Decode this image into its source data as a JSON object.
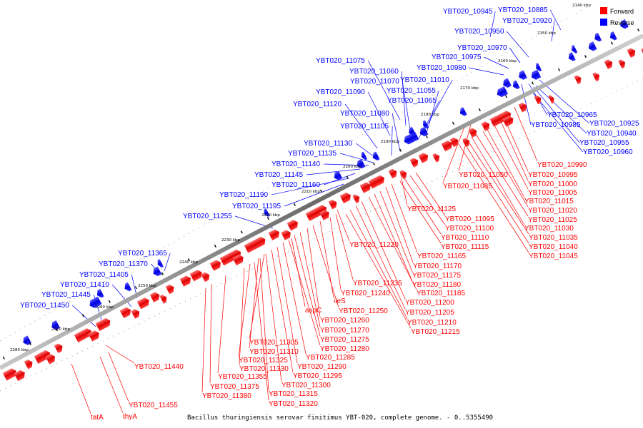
{
  "legend": {
    "forward": {
      "label": "Forward",
      "color": "#ff0000"
    },
    "reverse": {
      "label": "Reverse",
      "color": "#0000ff"
    }
  },
  "caption": "Bacillus thuringiensis serovar finitimus YBT-020, complete genome. - 0..5355490",
  "ticks": [
    "2140 kbp",
    "2150 kbp",
    "2160 kbp",
    "2170 kbp",
    "2180 kbp",
    "2190 kbp",
    "2200 kbp",
    "2210 kbp",
    "2220 kbp",
    "2230 kbp",
    "2240 kbp",
    "2250 kbp",
    "2260 kbp",
    "2270 kbp",
    "2280 kbp"
  ],
  "reverse_labels": [
    "YBT020_10945",
    "YBT020_10885",
    "YBT020_10920",
    "YBT020_10950",
    "YBT020_10970",
    "YBT020_10975",
    "YBT020_10980",
    "YBT020_11075",
    "YBT020_11060",
    "YBT020_11070",
    "YBT020_11010",
    "YBT020_11090",
    "YBT020_11055",
    "YBT020_11065",
    "YBT020_11120",
    "YBT020_11080",
    "YBT020_11105",
    "YBT020_11130",
    "YBT020_11135",
    "YBT020_11140",
    "YBT020_11145",
    "YBT020_11160",
    "YBT020_11190",
    "YBT020_11195",
    "YBT020_11255",
    "YBT020_11365",
    "YBT020_11370",
    "YBT020_11405",
    "YBT020_11410",
    "YBT020_11445",
    "YBT020_11450",
    "YBT020_10965",
    "YBT020_10925",
    "YBT020_10985",
    "YBT020_10940",
    "YBT020_10955",
    "YBT020_10960"
  ],
  "forward_labels": [
    "YBT020_10990",
    "YBT020_10995",
    "YBT020_11050",
    "YBT020_11000",
    "YBT020_11085",
    "YBT020_11005",
    "YBT020_11015",
    "YBT020_11020",
    "YBT020_11125",
    "YBT020_11025",
    "YBT020_11095",
    "YBT020_11030",
    "YBT020_11100",
    "YBT020_11035",
    "YBT020_11110",
    "YBT020_11040",
    "YBT020_11115",
    "YBT020_11220",
    "YBT020_11045",
    "YBT020_11165",
    "YBT020_11170",
    "YBT020_11175",
    "YBT020_11235",
    "YBT020_11180",
    "YBT020_11240",
    "YBT020_11185",
    "ileS",
    "YBT020_11200",
    "aspC",
    "YBT020_11250",
    "YBT020_11205",
    "YBT020_11260",
    "YBT020_11210",
    "YBT020_11270",
    "YBT020_11215",
    "YBT020_11275",
    "YBT020_11305",
    "YBT020_11280",
    "YBT020_11310",
    "YBT020_11285",
    "YBT020_11325",
    "YBT020_11330",
    "YBT020_11290",
    "YBT020_11440",
    "YBT020_11295",
    "YBT020_11355",
    "YBT020_11300",
    "YBT020_11375",
    "YBT020_11315",
    "YBT020_11380",
    "YBT020_11320",
    "YBT020_11455",
    "tatA",
    "thyA"
  ]
}
